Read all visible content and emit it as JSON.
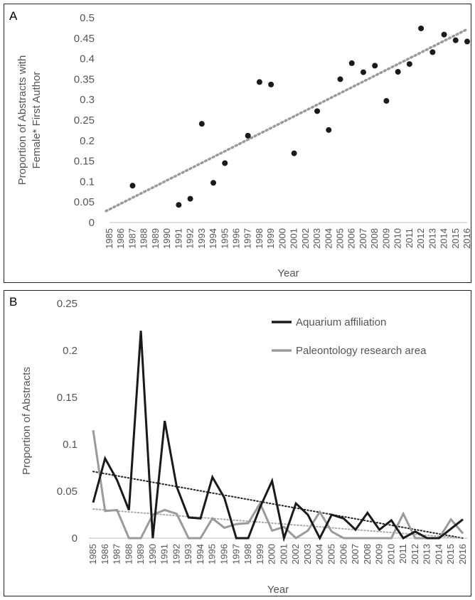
{
  "chart_data": [
    {
      "panel_label": "A",
      "type": "scatter",
      "ylabel": [
        "Proportion of Abstracts with",
        "Female* First Author"
      ],
      "xlabel": "Year",
      "ylim": [
        0,
        0.5
      ],
      "yticks": [
        "0",
        "0.05",
        "0.1",
        "0.15",
        "0.2",
        "0.25",
        "0.3",
        "0.35",
        "0.4",
        "0.45",
        "0.5"
      ],
      "x_categories": [
        "1985",
        "1986",
        "1987",
        "1988",
        "1989",
        "1990",
        "1991",
        "1992",
        "1993",
        "1994",
        "1995",
        "1996",
        "1997",
        "1998",
        "1999",
        "2000",
        "2001",
        "2002",
        "2003",
        "2004",
        "2005",
        "2006",
        "2007",
        "2008",
        "2009",
        "2010",
        "2011",
        "2012",
        "2013",
        "2014",
        "2015",
        "2016"
      ],
      "points": [
        {
          "x": "1987",
          "y": 0.09
        },
        {
          "x": "1991",
          "y": 0.043
        },
        {
          "x": "1992",
          "y": 0.058
        },
        {
          "x": "1993",
          "y": 0.241
        },
        {
          "x": "1994",
          "y": 0.097
        },
        {
          "x": "1995",
          "y": 0.145
        },
        {
          "x": "1997",
          "y": 0.212
        },
        {
          "x": "1998",
          "y": 0.343
        },
        {
          "x": "1999",
          "y": 0.337
        },
        {
          "x": "2001",
          "y": 0.169
        },
        {
          "x": "2003",
          "y": 0.272
        },
        {
          "x": "2004",
          "y": 0.226
        },
        {
          "x": "2005",
          "y": 0.35
        },
        {
          "x": "2006",
          "y": 0.389
        },
        {
          "x": "2007",
          "y": 0.367
        },
        {
          "x": "2008",
          "y": 0.383
        },
        {
          "x": "2009",
          "y": 0.297
        },
        {
          "x": "2010",
          "y": 0.368
        },
        {
          "x": "2011",
          "y": 0.387
        },
        {
          "x": "2012",
          "y": 0.474
        },
        {
          "x": "2013",
          "y": 0.416
        },
        {
          "x": "2014",
          "y": 0.459
        },
        {
          "x": "2015",
          "y": 0.445
        },
        {
          "x": "2016",
          "y": 0.442
        }
      ],
      "trendline": {
        "x": [
          "1985",
          "2016"
        ],
        "y": [
          0.032,
          0.472
        ]
      },
      "colors": {
        "points": "#1a1a1a",
        "trend": "#9a9a9a"
      }
    },
    {
      "panel_label": "B",
      "type": "line",
      "ylabel": "Proportion of Abstracts",
      "xlabel": "Year",
      "ylim": [
        0,
        0.25
      ],
      "yticks": [
        "0",
        "0.05",
        "0.1",
        "0.15",
        "0.2",
        "0.25"
      ],
      "legend_position": "top-right",
      "categories": [
        "1985",
        "1986",
        "1987",
        "1988",
        "1989",
        "1990",
        "1991",
        "1992",
        "1993",
        "1994",
        "1995",
        "1996",
        "1997",
        "1998",
        "1999",
        "2000",
        "2001",
        "2002",
        "2003",
        "2004",
        "2005",
        "2006",
        "2007",
        "2008",
        "2009",
        "2010",
        "2011",
        "2012",
        "2013",
        "2014",
        "2015",
        "2016"
      ],
      "series": [
        {
          "name": "Aquarium affiliation",
          "color": "#1a1a1a",
          "values": [
            0.038,
            0.085,
            0.062,
            0.03,
            0.221,
            0.0,
            0.125,
            0.055,
            0.022,
            0.021,
            0.065,
            0.043,
            0.0,
            0.0,
            0.033,
            0.061,
            0.0,
            0.037,
            0.025,
            0.0,
            0.025,
            0.021,
            0.009,
            0.027,
            0.009,
            0.019,
            0.0,
            0.007,
            0.0,
            0.0,
            0.01,
            0.02
          ],
          "trendline": {
            "x": [
              "1985",
              "2016"
            ],
            "y": [
              0.071,
              0.0
            ]
          }
        },
        {
          "name": "Paleontology research area",
          "color": "#9a9a9a",
          "values": [
            0.115,
            0.029,
            0.03,
            0.0,
            0.0,
            0.025,
            0.03,
            0.026,
            0.0,
            0.0,
            0.021,
            0.011,
            0.015,
            0.016,
            0.037,
            0.008,
            0.012,
            0.0,
            0.008,
            0.028,
            0.007,
            0.0,
            0.0,
            0.0,
            0.0,
            0.0,
            0.026,
            0.0,
            0.0,
            0.0,
            0.02,
            0.005
          ],
          "trendline": {
            "x": [
              "1985",
              "2016"
            ],
            "y": [
              0.031,
              0.0
            ]
          }
        }
      ]
    }
  ]
}
